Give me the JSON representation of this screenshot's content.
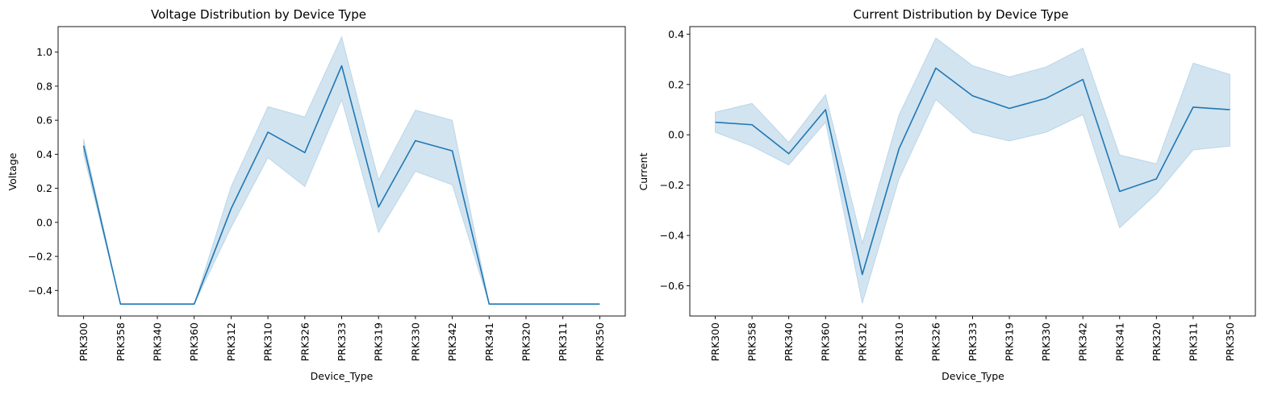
{
  "chart_data": [
    {
      "type": "line",
      "title": "Voltage Distribution by Device Type",
      "xlabel": "Device_Type",
      "ylabel": "Voltage",
      "categories": [
        "PRK300",
        "PRK358",
        "PRK340",
        "PRK360",
        "PRK312",
        "PRK310",
        "PRK326",
        "PRK333",
        "PRK319",
        "PRK330",
        "PRK342",
        "PRK341",
        "PRK320",
        "PRK311",
        "PRK350"
      ],
      "series": [
        {
          "values": [
            0.45,
            -0.48,
            -0.48,
            -0.48,
            0.08,
            0.53,
            0.41,
            0.92,
            0.09,
            0.48,
            0.42,
            -0.48,
            -0.48,
            -0.48,
            -0.48
          ],
          "ci_lower": [
            0.4,
            -0.48,
            -0.48,
            -0.48,
            -0.03,
            0.38,
            0.21,
            0.72,
            -0.06,
            0.3,
            0.22,
            -0.48,
            -0.48,
            -0.48,
            -0.48
          ],
          "ci_upper": [
            0.49,
            -0.48,
            -0.48,
            -0.48,
            0.21,
            0.68,
            0.62,
            1.09,
            0.25,
            0.66,
            0.6,
            -0.48,
            -0.48,
            -0.48,
            -0.48
          ]
        }
      ],
      "ylim": [
        -0.55,
        1.15
      ],
      "yticks": [
        -0.4,
        -0.2,
        0.0,
        0.2,
        0.4,
        0.6,
        0.8,
        1.0
      ],
      "ytick_labels": [
        "−0.4",
        "−0.2",
        "0.0",
        "0.2",
        "0.4",
        "0.6",
        "0.8",
        "1.0"
      ],
      "grid": false,
      "colors": {
        "line": "#1f77b4",
        "band": "#1f77b4"
      }
    },
    {
      "type": "line",
      "title": "Current Distribution by Device Type",
      "xlabel": "Device_Type",
      "ylabel": "Current",
      "categories": [
        "PRK300",
        "PRK358",
        "PRK340",
        "PRK360",
        "PRK312",
        "PRK310",
        "PRK326",
        "PRK333",
        "PRK319",
        "PRK330",
        "PRK342",
        "PRK341",
        "PRK320",
        "PRK311",
        "PRK350"
      ],
      "series": [
        {
          "values": [
            0.05,
            0.04,
            -0.075,
            0.1,
            -0.555,
            -0.055,
            0.265,
            0.155,
            0.105,
            0.145,
            0.22,
            -0.225,
            -0.175,
            0.11,
            0.1
          ],
          "ci_lower": [
            0.01,
            -0.045,
            -0.12,
            0.05,
            -0.67,
            -0.175,
            0.14,
            0.01,
            -0.025,
            0.01,
            0.08,
            -0.37,
            -0.235,
            -0.06,
            -0.045
          ],
          "ci_upper": [
            0.09,
            0.125,
            -0.03,
            0.16,
            -0.43,
            0.08,
            0.385,
            0.275,
            0.23,
            0.27,
            0.345,
            -0.08,
            -0.115,
            0.285,
            0.24
          ]
        }
      ],
      "ylim": [
        -0.72,
        0.43
      ],
      "yticks": [
        -0.6,
        -0.4,
        -0.2,
        0.0,
        0.2,
        0.4
      ],
      "ytick_labels": [
        "−0.6",
        "−0.4",
        "−0.2",
        "0.0",
        "0.2",
        "0.4"
      ],
      "grid": false,
      "colors": {
        "line": "#1f77b4",
        "band": "#1f77b4"
      }
    }
  ]
}
